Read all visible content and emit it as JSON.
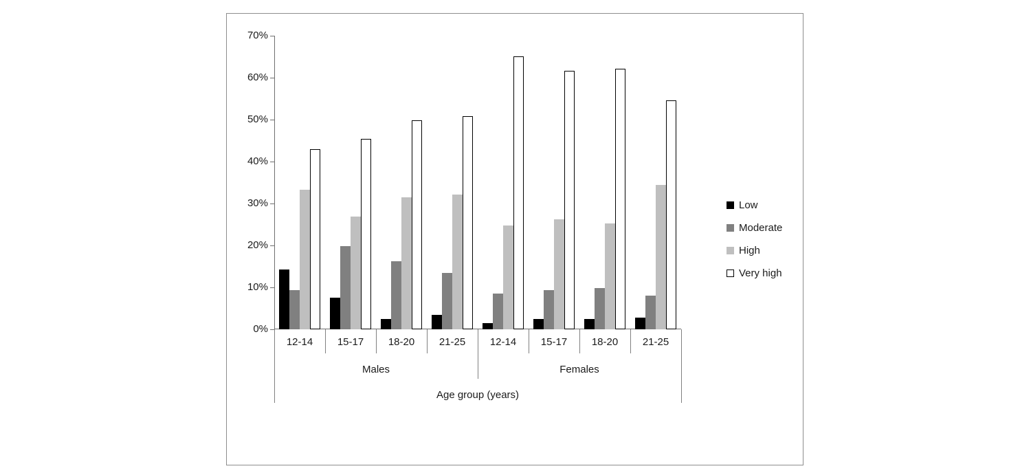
{
  "chart_data": {
    "type": "bar",
    "title": "",
    "xlabel": "Age group (years)",
    "ylabel": "",
    "ylim": [
      0,
      70
    ],
    "grid": false,
    "legend_position": "right",
    "y_axis": {
      "min": 0,
      "max": 70,
      "step": 10,
      "tick_labels": [
        "0%",
        "10%",
        "20%",
        "30%",
        "40%",
        "50%",
        "60%",
        "70%"
      ]
    },
    "groups": [
      {
        "label": "Males",
        "span": 4
      },
      {
        "label": "Females",
        "span": 4
      }
    ],
    "categories": [
      "12-14",
      "15-17",
      "18-20",
      "21-25",
      "12-14",
      "15-17",
      "18-20",
      "21-25"
    ],
    "series": [
      {
        "name": "Low",
        "fill": "#000000",
        "outline": "#000000",
        "values": [
          14.2,
          7.6,
          2.5,
          3.4,
          1.5,
          2.4,
          2.4,
          2.8
        ]
      },
      {
        "name": "Moderate",
        "fill": "#808080",
        "outline": "#808080",
        "values": [
          9.3,
          19.9,
          16.2,
          13.4,
          8.5,
          9.3,
          9.9,
          8.0
        ]
      },
      {
        "name": "High",
        "fill": "#bfbfbf",
        "outline": "#bfbfbf",
        "values": [
          33.3,
          26.9,
          31.4,
          32.2,
          24.8,
          26.3,
          25.3,
          34.4
        ]
      },
      {
        "name": "Very high",
        "fill": "#ffffff",
        "outline": "#000000",
        "values": [
          43.0,
          45.4,
          49.9,
          50.9,
          65.0,
          61.6,
          62.2,
          54.6
        ]
      }
    ],
    "by_group": {
      "Males": {
        "Low": [
          14.2,
          7.6,
          2.5,
          3.4
        ],
        "Moderate": [
          9.3,
          19.9,
          16.2,
          13.4
        ],
        "High": [
          33.3,
          26.9,
          31.4,
          32.2
        ],
        "Very high": [
          43.0,
          45.4,
          49.9,
          50.9
        ]
      },
      "Females": {
        "Low": [
          1.5,
          2.4,
          2.4,
          2.8
        ],
        "Moderate": [
          8.5,
          9.3,
          9.9,
          8.0
        ],
        "High": [
          24.8,
          26.3,
          25.3,
          34.4
        ],
        "Very high": [
          65.0,
          61.6,
          62.2,
          54.6
        ]
      }
    },
    "colors": {
      "axis_line": "#6e6e6e",
      "separator_line": "#808080",
      "text": "#1a1a1a"
    }
  }
}
